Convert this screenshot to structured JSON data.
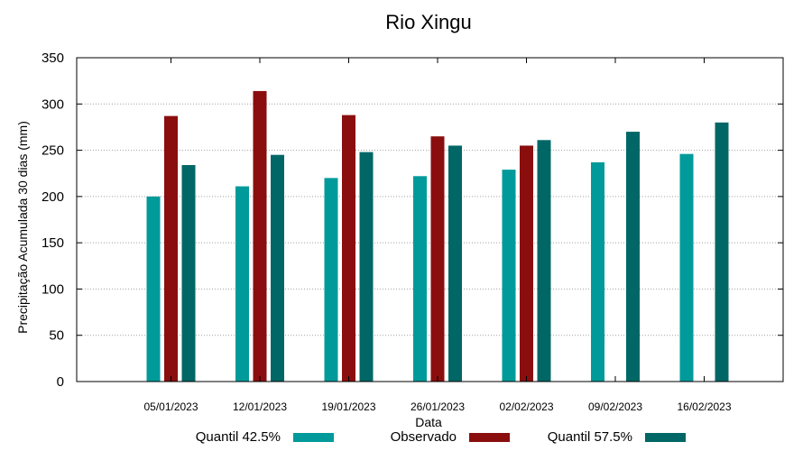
{
  "chart_data": {
    "type": "bar",
    "title": "Rio Xingu",
    "xlabel": "Data",
    "ylabel": "Precipitação Acumulada 30 dias (mm)",
    "ylim": [
      0,
      350
    ],
    "yticks": [
      0,
      50,
      100,
      150,
      200,
      250,
      300,
      350
    ],
    "grid": true,
    "legend_position": "bottom",
    "categories": [
      "05/01/2023",
      "12/01/2023",
      "19/01/2023",
      "26/01/2023",
      "02/02/2023",
      "09/02/2023",
      "16/02/2023"
    ],
    "series": [
      {
        "name": "Quantil 42.5%",
        "color": "#009a9a",
        "values": [
          200,
          211,
          220,
          222,
          229,
          237,
          246
        ]
      },
      {
        "name": "Observado",
        "color": "#8b0e0e",
        "values": [
          287,
          314,
          288,
          265,
          255,
          null,
          null
        ]
      },
      {
        "name": "Quantil 57.5%",
        "color": "#006766",
        "values": [
          234,
          245,
          248,
          255,
          261,
          270,
          280
        ]
      }
    ]
  }
}
